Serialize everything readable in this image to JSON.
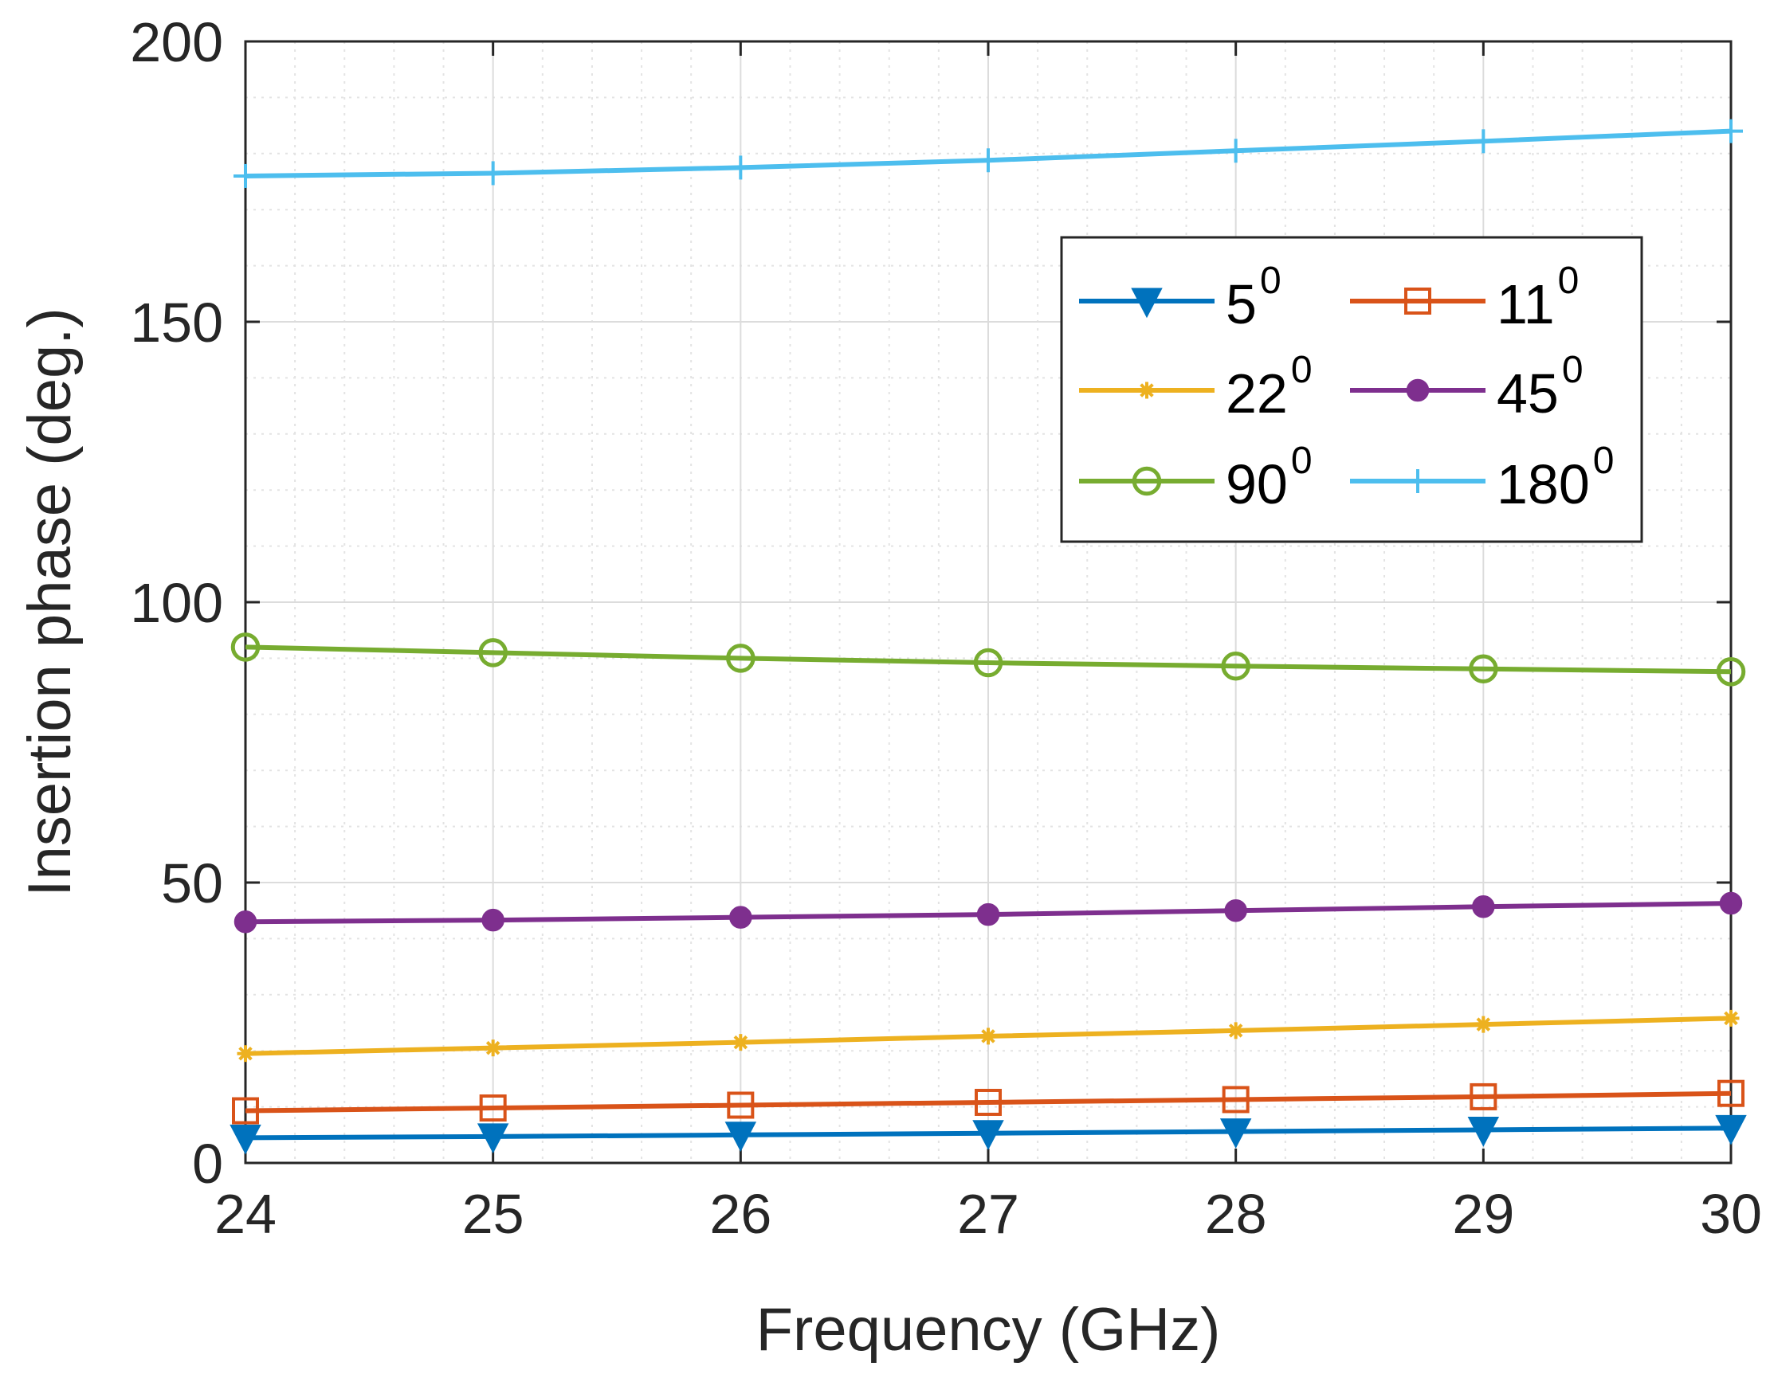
{
  "chart_data": {
    "type": "line",
    "title": "",
    "xlabel": "Frequency (GHz)",
    "ylabel": "Insertion phase (deg.)",
    "xlim": [
      24,
      30
    ],
    "ylim": [
      0,
      200
    ],
    "xticks": [
      24,
      25,
      26,
      27,
      28,
      29,
      30
    ],
    "yticks": [
      0,
      50,
      100,
      150,
      200
    ],
    "grid": true,
    "minor_grid": true,
    "legend_position": "upper-right",
    "legend_columns": 2,
    "x": [
      24,
      25,
      26,
      27,
      28,
      29,
      30
    ],
    "series": [
      {
        "name": "5",
        "superscript": "0",
        "color": "#0072BD",
        "marker": "triangle-down",
        "values": [
          4.5,
          4.7,
          5.0,
          5.3,
          5.6,
          5.9,
          6.2
        ]
      },
      {
        "name": "11",
        "superscript": "0",
        "color": "#D95319",
        "marker": "square",
        "values": [
          9.3,
          9.8,
          10.3,
          10.8,
          11.3,
          11.8,
          12.4
        ]
      },
      {
        "name": "22",
        "superscript": "0",
        "color": "#EDB120",
        "marker": "asterisk",
        "values": [
          19.5,
          20.5,
          21.5,
          22.6,
          23.6,
          24.7,
          25.8
        ]
      },
      {
        "name": "45",
        "superscript": "0",
        "color": "#7E2F8E",
        "marker": "circle-filled",
        "values": [
          43.0,
          43.3,
          43.8,
          44.3,
          45.0,
          45.7,
          46.3
        ]
      },
      {
        "name": "90",
        "superscript": "0",
        "color": "#77AC30",
        "marker": "circle-open",
        "values": [
          92.0,
          91.0,
          90.0,
          89.2,
          88.6,
          88.1,
          87.6
        ]
      },
      {
        "name": "180",
        "superscript": "0",
        "color": "#4DBEEE",
        "marker": "plus",
        "values": [
          176.0,
          176.5,
          177.5,
          178.8,
          180.5,
          182.2,
          184.0
        ]
      }
    ]
  }
}
